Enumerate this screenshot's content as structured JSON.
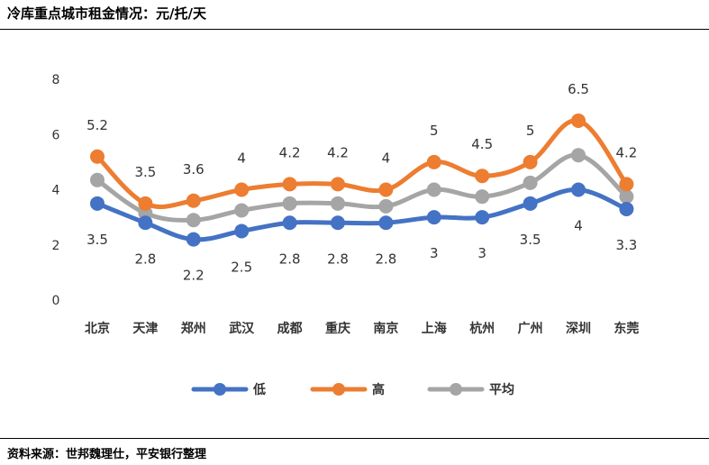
{
  "title": "冷库重点城市租金情况：元/托/天",
  "source": "资料来源：世邦魏理仕，平安银行整理",
  "chart_data": {
    "type": "line",
    "categories": [
      "北京",
      "天津",
      "郑州",
      "武汉",
      "成都",
      "重庆",
      "南京",
      "上海",
      "杭州",
      "广州",
      "深圳",
      "东莞"
    ],
    "series": [
      {
        "name": "低",
        "color": "#4472C4",
        "values": [
          3.5,
          2.8,
          2.2,
          2.5,
          2.8,
          2.8,
          2.8,
          3,
          3,
          3.5,
          4,
          3.3
        ]
      },
      {
        "name": "高",
        "color": "#ED7D31",
        "values": [
          5.2,
          3.5,
          3.6,
          4,
          4.2,
          4.2,
          4,
          5,
          4.5,
          5,
          6.5,
          4.2
        ]
      },
      {
        "name": "平均",
        "color": "#A5A5A5",
        "values": [
          4.35,
          3.15,
          2.9,
          3.25,
          3.5,
          3.5,
          3.4,
          4,
          3.75,
          4.25,
          5.25,
          3.75
        ]
      }
    ],
    "ylim": [
      0,
      8
    ],
    "yticks": [
      0,
      2,
      4,
      6,
      8
    ],
    "grid": false,
    "legend": "bottom-center"
  }
}
